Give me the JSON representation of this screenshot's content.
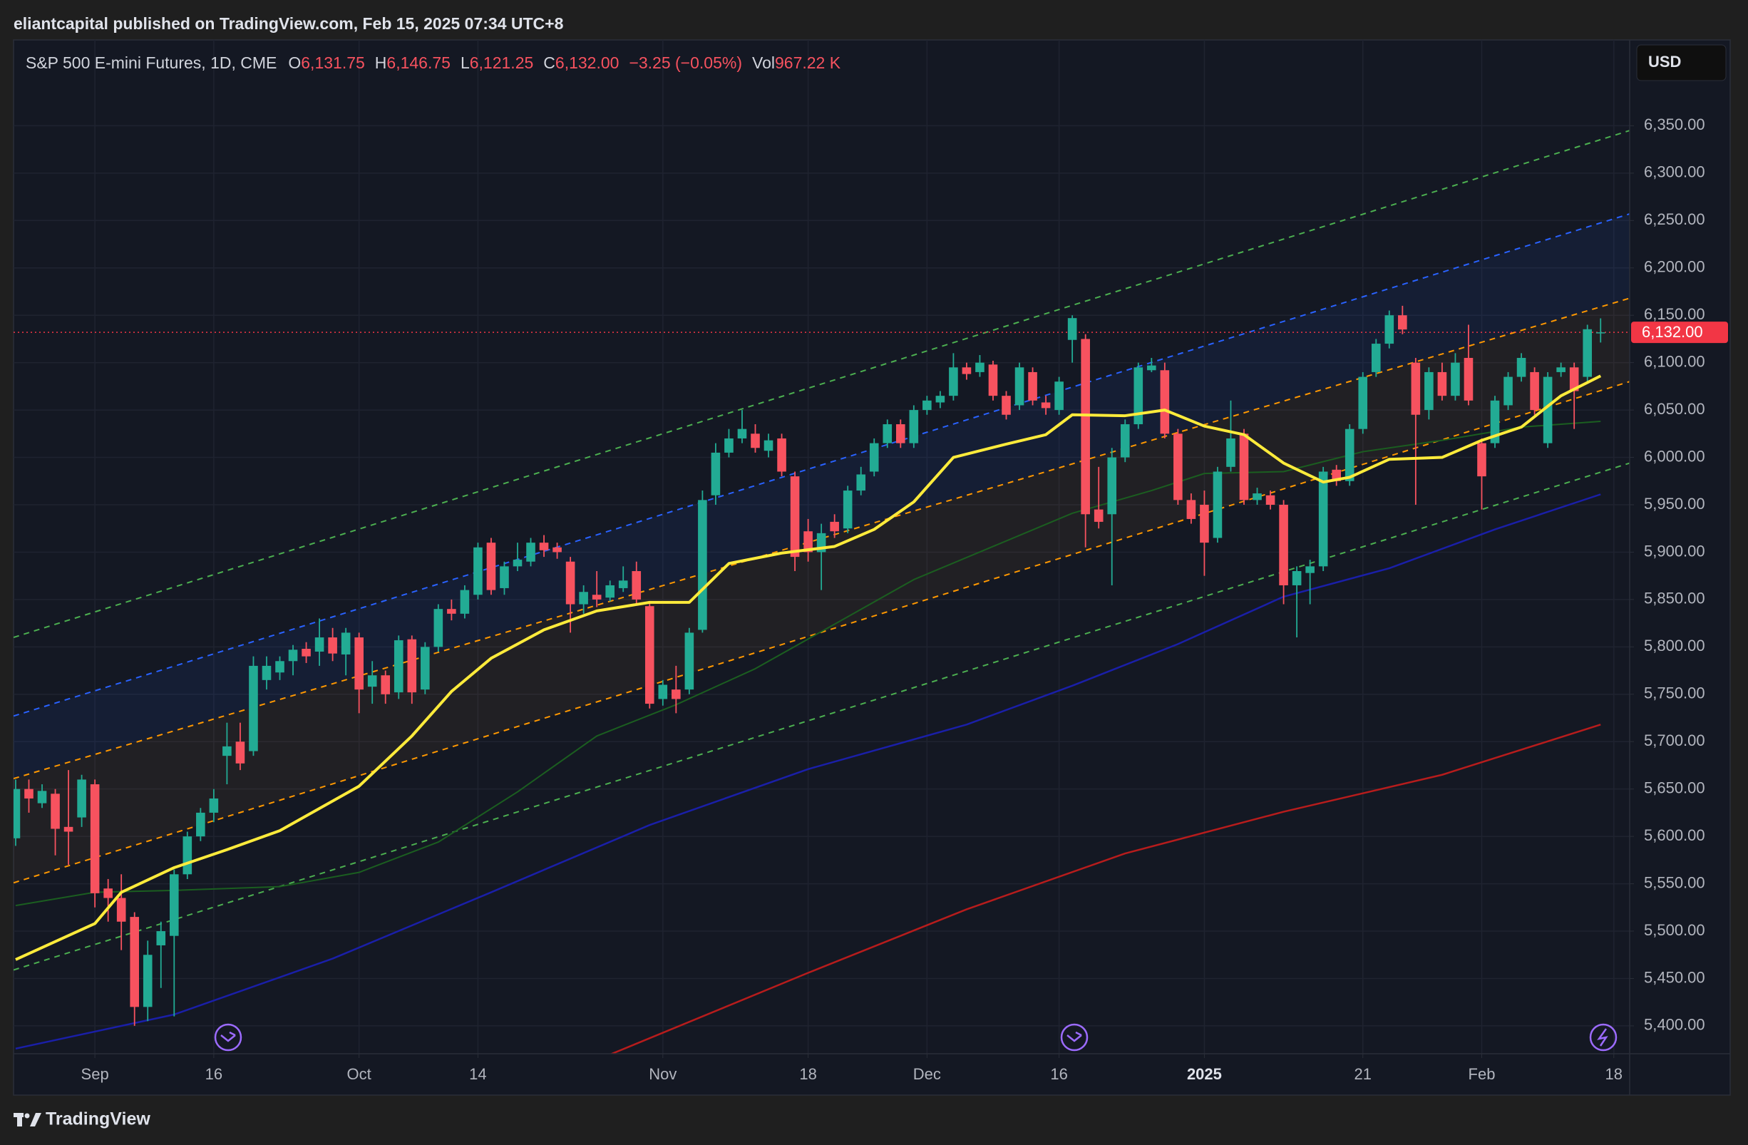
{
  "header": {
    "text": "eliantcapital published on TradingView.com, Feb 15, 2025 07:34 UTC+8"
  },
  "footer": {
    "brand": "TradingView"
  },
  "chart_data": {
    "type": "candlestick",
    "title": "S&P 500 E-mini Futures, 1D, CME",
    "legend": [
      {
        "label": "O",
        "value": "6,131.75"
      },
      {
        "label": "H",
        "value": "6,146.75"
      },
      {
        "label": "L",
        "value": "6,121.25"
      },
      {
        "label": "C",
        "value": "6,132.00"
      }
    ],
    "change": "−3.25 (−0.05%)",
    "volume_label": "Vol",
    "volume": "967.22 K",
    "legend_value_color": "#f7525f",
    "currency": "USD",
    "up_color": "#22ab94",
    "down_color": "#f7525f",
    "open": [
      5598,
      5650,
      5635,
      5645,
      5610,
      5620,
      5655,
      5545,
      5535,
      5515,
      5420,
      5485,
      5495,
      5560,
      5600,
      5625,
      5685,
      5700,
      5690,
      5765,
      5773,
      5785,
      5798,
      5795,
      5810,
      5792,
      5810,
      5758,
      5770,
      5752,
      5808,
      5755,
      5800,
      5840,
      5835,
      5855,
      5910,
      5862,
      5885,
      5890,
      5910,
      5905,
      5890,
      5845,
      5855,
      5852,
      5862,
      5880,
      5843,
      5745,
      5755,
      5755,
      5818,
      5960,
      6005,
      6020,
      6025,
      6007,
      6020,
      5980,
      5922,
      5900,
      5932,
      5925,
      5965,
      5985,
      6015,
      6035,
      6015,
      6050,
      6058,
      6065,
      6095,
      6090,
      6098,
      6065,
      6055,
      6090,
      6058,
      6050,
      6124,
      6125,
      5945,
      5940,
      6000,
      6035,
      6092,
      6092,
      6025,
      5955,
      5950,
      5915,
      5990,
      6025,
      5955,
      5960,
      5950,
      5865,
      5878,
      5885,
      5987,
      5975,
      6030,
      6090,
      6120,
      6150,
      6100,
      6050,
      6090,
      6065,
      6105,
      6015,
      6015,
      6055,
      6085,
      6090,
      6015,
      6090,
      6095,
      6085,
      6131.75
    ],
    "high": [
      5660,
      5660,
      5655,
      5650,
      5670,
      5665,
      5660,
      5555,
      5560,
      5520,
      5490,
      5510,
      5565,
      5605,
      5630,
      5650,
      5720,
      5720,
      5790,
      5790,
      5790,
      5802,
      5805,
      5830,
      5820,
      5820,
      5815,
      5785,
      5775,
      5812,
      5812,
      5805,
      5845,
      5850,
      5865,
      5910,
      5915,
      5890,
      5910,
      5915,
      5918,
      5910,
      5895,
      5865,
      5880,
      5870,
      5885,
      5890,
      5848,
      5765,
      5780,
      5820,
      5965,
      6015,
      6030,
      6050,
      6035,
      6025,
      6025,
      5985,
      5935,
      5930,
      5940,
      5970,
      5990,
      6020,
      6040,
      6040,
      6055,
      6065,
      6070,
      6110,
      6100,
      6108,
      6102,
      6070,
      6100,
      6095,
      6065,
      6085,
      6150,
      6130,
      5990,
      6010,
      6040,
      6100,
      6105,
      6100,
      6030,
      5962,
      5965,
      5990,
      6060,
      6030,
      5968,
      5965,
      5955,
      5885,
      5892,
      5990,
      5992,
      6035,
      6090,
      6125,
      6155,
      6160,
      6105,
      6095,
      6100,
      6110,
      6140,
      6020,
      6065,
      6090,
      6110,
      6095,
      6090,
      6100,
      6100,
      6140,
      6146.75
    ],
    "low": [
      5590,
      5625,
      5630,
      5580,
      5570,
      5610,
      5525,
      5510,
      5480,
      5400,
      5405,
      5440,
      5410,
      5555,
      5595,
      5615,
      5655,
      5670,
      5685,
      5755,
      5765,
      5770,
      5783,
      5780,
      5785,
      5770,
      5730,
      5740,
      5740,
      5745,
      5740,
      5750,
      5795,
      5828,
      5830,
      5850,
      5855,
      5855,
      5880,
      5885,
      5895,
      5893,
      5815,
      5835,
      5842,
      5848,
      5858,
      5845,
      5735,
      5738,
      5730,
      5750,
      5815,
      5950,
      6000,
      6015,
      6005,
      6000,
      5980,
      5880,
      5890,
      5860,
      5915,
      5920,
      5960,
      5980,
      6010,
      6010,
      6010,
      6045,
      6052,
      6060,
      6082,
      6085,
      6060,
      6040,
      6050,
      6055,
      6045,
      6045,
      6100,
      5905,
      5925,
      5865,
      5995,
      6030,
      6090,
      6020,
      5950,
      5930,
      5875,
      5910,
      5985,
      5950,
      5950,
      5945,
      5845,
      5810,
      5845,
      5880,
      5970,
      5970,
      6025,
      6085,
      6115,
      6130,
      5950,
      6040,
      6060,
      6060,
      6055,
      5945,
      6010,
      6050,
      6080,
      6045,
      6010,
      6085,
      6030,
      6080,
      6121.25
    ],
    "close": [
      5650,
      5640,
      5648,
      5608,
      5605,
      5660,
      5540,
      5535,
      5510,
      5420,
      5475,
      5500,
      5560,
      5600,
      5625,
      5640,
      5695,
      5677,
      5780,
      5780,
      5785,
      5797,
      5790,
      5810,
      5793,
      5815,
      5755,
      5770,
      5750,
      5807,
      5752,
      5800,
      5840,
      5835,
      5860,
      5905,
      5860,
      5885,
      5892,
      5910,
      5902,
      5900,
      5845,
      5858,
      5850,
      5865,
      5870,
      5850,
      5740,
      5760,
      5745,
      5815,
      5955,
      6005,
      6020,
      6030,
      6010,
      6018,
      5985,
      5895,
      5900,
      5920,
      5922,
      5965,
      5982,
      6015,
      6035,
      6015,
      6050,
      6060,
      6065,
      6095,
      6088,
      6100,
      6065,
      6045,
      6095,
      6060,
      6052,
      6080,
      6147,
      5940,
      5932,
      6000,
      6035,
      6095,
      6097,
      6025,
      5955,
      5935,
      5910,
      5985,
      6020,
      5955,
      5962,
      5950,
      5865,
      5880,
      5885,
      5985,
      5975,
      6030,
      6085,
      6120,
      6150,
      6135,
      6045,
      6090,
      6065,
      6100,
      6060,
      5980,
      6060,
      6085,
      6105,
      6050,
      6085,
      6095,
      6070,
      6135.25,
      6132
    ],
    "overlays": [
      {
        "color": "#1b5e20",
        "width": 2,
        "x": [
          0,
          6,
          12,
          20,
          26,
          32,
          38,
          44,
          50,
          56,
          62,
          68,
          74,
          80,
          86,
          90,
          96,
          102,
          108,
          114,
          120
        ],
        "values": [
          5527,
          5541,
          5543,
          5547,
          5562,
          5594,
          5647,
          5706,
          5739,
          5777,
          5824,
          5871,
          5906,
          5941,
          5965,
          5983,
          5985,
          6006,
          6018,
          6032,
          6038
        ]
      },
      {
        "color": "#1a1fa8",
        "width": 2.5,
        "x": [
          0,
          12,
          24,
          36,
          48,
          60,
          72,
          80,
          88,
          96,
          104,
          112,
          120
        ],
        "values": [
          5376,
          5412,
          5471,
          5541,
          5612,
          5671,
          5718,
          5759,
          5803,
          5853,
          5883,
          5924,
          5961
        ]
      },
      {
        "color": "#b71c1c",
        "width": 2.5,
        "x": [
          44,
          60,
          72,
          84,
          96,
          108,
          120
        ],
        "values": [
          5364,
          5456,
          5523,
          5582,
          5626,
          5665,
          5718
        ]
      },
      {
        "color": "#ffeb3b",
        "width": 4,
        "x": [
          0,
          6,
          8,
          12,
          16,
          20,
          26,
          30,
          33,
          36,
          40,
          44,
          48,
          51,
          54,
          58,
          62,
          65,
          68,
          71,
          75,
          78,
          80,
          84,
          87,
          90,
          93,
          96,
          99,
          101,
          104,
          108,
          111,
          114,
          117,
          120
        ],
        "values": [
          5470,
          5508,
          5541,
          5567,
          5586,
          5606,
          5653,
          5706,
          5753,
          5788,
          5818,
          5838,
          5847,
          5847,
          5888,
          5899,
          5906,
          5924,
          5953,
          6000,
          6014,
          6024,
          6045,
          6044,
          6050,
          6033,
          6024,
          5994,
          5974,
          5979,
          5998,
          6000,
          6018,
          6032,
          6065,
          6086
        ]
      }
    ],
    "channels": [
      {
        "color": "#4caf50",
        "x": [
          -0.16,
          122.2
        ],
        "values": [
          5810,
          6345
        ]
      },
      {
        "color": "#2962ff",
        "x": [
          -0.16,
          122.2
        ],
        "values": [
          5727,
          6257
        ]
      },
      {
        "color": "#ff9800",
        "x": [
          -0.16,
          122.2
        ],
        "values": [
          5661,
          6168
        ]
      },
      {
        "color": "#ff9800",
        "x": [
          -0.16,
          122.2
        ],
        "values": [
          5551,
          6080
        ]
      },
      {
        "color": "#4caf50",
        "x": [
          -0.16,
          122.2
        ],
        "values": [
          5459,
          5994
        ]
      }
    ],
    "band_fills": [
      {
        "color": "rgba(41,98,255,0.08)",
        "channels": [
          1,
          2
        ]
      },
      {
        "color": "rgba(255,170,60,0.06)",
        "channels": [
          2,
          3
        ]
      }
    ],
    "last_price": {
      "value": 6132,
      "label": "6,132.00",
      "color": "#f23645"
    },
    "xlim": [
      -0.16,
      122.2
    ],
    "xticks": [
      {
        "value": 6,
        "label": "Sep"
      },
      {
        "value": 15,
        "label": "16"
      },
      {
        "value": 26,
        "label": "Oct"
      },
      {
        "value": 35,
        "label": "14"
      },
      {
        "value": 49,
        "label": "Nov"
      },
      {
        "value": 60,
        "label": "18"
      },
      {
        "value": 69,
        "label": "Dec"
      },
      {
        "value": 79,
        "label": "16"
      },
      {
        "value": 90,
        "label": "2025",
        "bold": true
      },
      {
        "value": 102,
        "label": "21"
      },
      {
        "value": 111,
        "label": "Feb"
      },
      {
        "value": 121,
        "label": "18"
      }
    ],
    "ylim": [
      5370.6,
      6440.6
    ],
    "yticks": [
      {
        "value": 5400,
        "label": "5,400.00"
      },
      {
        "value": 5450,
        "label": "5,450.00"
      },
      {
        "value": 5500,
        "label": "5,500.00"
      },
      {
        "value": 5550,
        "label": "5,550.00"
      },
      {
        "value": 5600,
        "label": "5,600.00"
      },
      {
        "value": 5650,
        "label": "5,650.00"
      },
      {
        "value": 5700,
        "label": "5,700.00"
      },
      {
        "value": 5750,
        "label": "5,750.00"
      },
      {
        "value": 5800,
        "label": "5,800.00"
      },
      {
        "value": 5850,
        "label": "5,850.00"
      },
      {
        "value": 5900,
        "label": "5,900.00"
      },
      {
        "value": 5950,
        "label": "5,950.00"
      },
      {
        "value": 6000,
        "label": "6,000.00"
      },
      {
        "value": 6050,
        "label": "6,050.00"
      },
      {
        "value": 6100,
        "label": "6,100.00"
      },
      {
        "value": 6150,
        "label": "6,150.00"
      },
      {
        "value": 6200,
        "label": "6,200.00"
      },
      {
        "value": 6250,
        "label": "6,250.00"
      },
      {
        "value": 6300,
        "label": "6,300.00"
      },
      {
        "value": 6350,
        "label": "6,350.00"
      }
    ],
    "grid": true
  }
}
